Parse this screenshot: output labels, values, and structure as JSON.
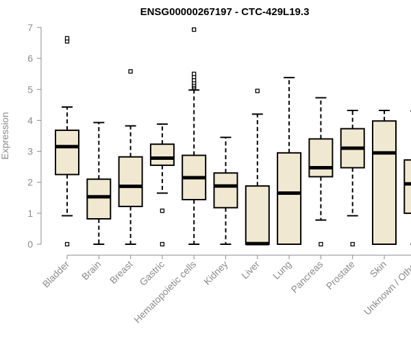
{
  "chart_data": {
    "type": "boxplot",
    "title": "ENSG00000267197 - CTC-429L19.3",
    "xlabel": "",
    "ylabel": "Expression",
    "ylim": [
      0,
      7
    ],
    "yticks": [
      0,
      1,
      2,
      3,
      4,
      5,
      6,
      7
    ],
    "box_color": "#f0e8d0",
    "stroke_color": "#000000",
    "axis_color": "#8a8a8a",
    "categories": [
      "Bladder",
      "Brain",
      "Breast",
      "Gastric",
      "Hematopoietic cells",
      "Kidney",
      "Liver",
      "Lung",
      "Pancreas",
      "Prostate",
      "Skin",
      "Unknown / Other"
    ],
    "series": [
      {
        "name": "Bladder",
        "whisker_low": 0.92,
        "q1": 2.25,
        "median": 3.15,
        "q3": 3.68,
        "whisker_high": 4.43,
        "outliers": [
          0.0,
          6.55,
          6.65
        ]
      },
      {
        "name": "Brain",
        "whisker_low": 0.0,
        "q1": 0.82,
        "median": 1.53,
        "q3": 2.1,
        "whisker_high": 3.93,
        "outliers": []
      },
      {
        "name": "Breast",
        "whisker_low": 0.0,
        "q1": 1.22,
        "median": 1.87,
        "q3": 2.82,
        "whisker_high": 3.82,
        "outliers": [
          5.58
        ]
      },
      {
        "name": "Gastric",
        "whisker_low": 1.65,
        "q1": 2.55,
        "median": 2.78,
        "q3": 3.23,
        "whisker_high": 3.88,
        "outliers": [
          0.0,
          1.08
        ]
      },
      {
        "name": "Hematopoietic cells",
        "whisker_low": 0.0,
        "q1": 1.44,
        "median": 2.15,
        "q3": 2.87,
        "whisker_high": 4.98,
        "outliers": [
          5.05,
          5.1,
          5.15,
          5.22,
          5.3,
          5.4,
          5.5,
          6.93
        ]
      },
      {
        "name": "Kidney",
        "whisker_low": 0.0,
        "q1": 1.18,
        "median": 1.88,
        "q3": 2.3,
        "whisker_high": 3.45,
        "outliers": []
      },
      {
        "name": "Liver",
        "whisker_low": 0.0,
        "q1": 0.0,
        "median": 0.02,
        "q3": 1.88,
        "whisker_high": 4.2,
        "outliers": [
          4.95
        ]
      },
      {
        "name": "Lung",
        "whisker_low": 0.0,
        "q1": 0.0,
        "median": 1.65,
        "q3": 2.95,
        "whisker_high": 5.38,
        "outliers": []
      },
      {
        "name": "Pancreas",
        "whisker_low": 0.78,
        "q1": 2.18,
        "median": 2.47,
        "q3": 3.4,
        "whisker_high": 4.73,
        "outliers": [
          0.0
        ]
      },
      {
        "name": "Prostate",
        "whisker_low": 0.92,
        "q1": 2.47,
        "median": 3.1,
        "q3": 3.73,
        "whisker_high": 4.32,
        "outliers": [
          0.0
        ]
      },
      {
        "name": "Skin",
        "whisker_low": 0.0,
        "q1": 0.0,
        "median": 2.95,
        "q3": 3.98,
        "whisker_high": 4.32,
        "outliers": []
      },
      {
        "name": "Unknown / Other",
        "whisker_low": 0.0,
        "q1": 1.0,
        "median": 1.95,
        "q3": 2.72,
        "whisker_high": 4.3,
        "outliers": []
      }
    ]
  }
}
